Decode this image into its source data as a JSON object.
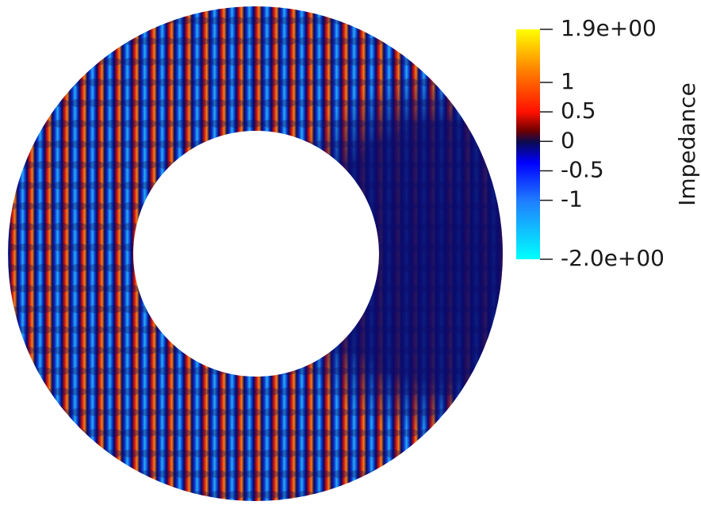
{
  "colorbar": {
    "title": "Impedance",
    "range": [
      -2.0,
      1.9
    ],
    "ticks": [
      {
        "value": 1.9,
        "label": "1.9e+00"
      },
      1,
      0.5,
      0,
      -0.5,
      -1,
      {
        "value": -2.0,
        "label": "-2.0e+00"
      }
    ]
  }
}
